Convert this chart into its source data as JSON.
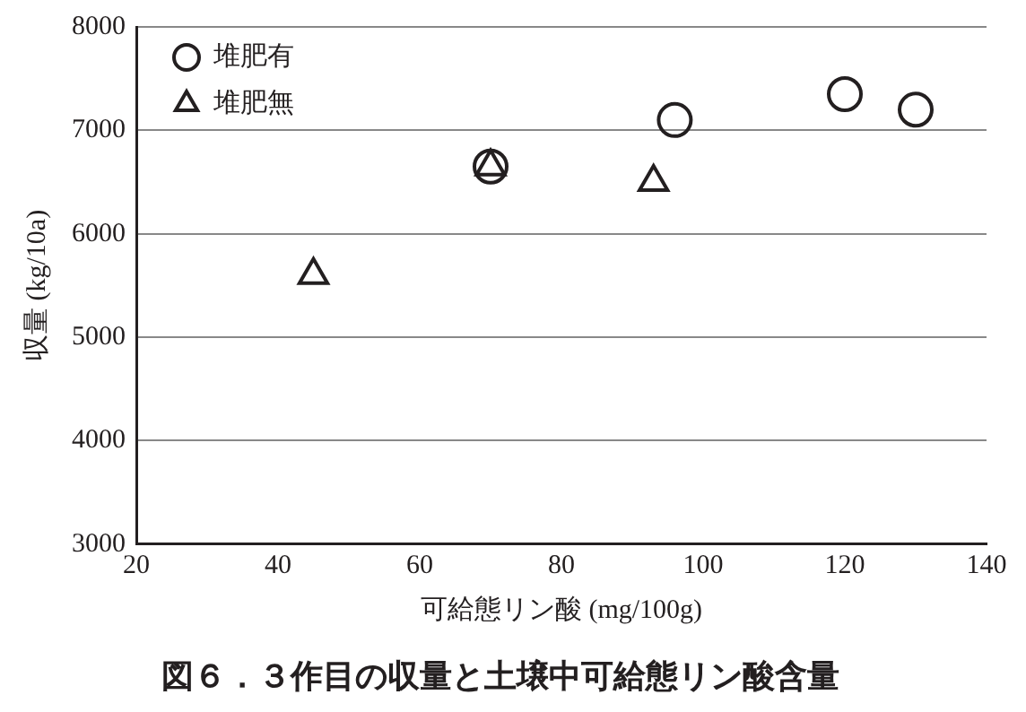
{
  "chart_data": {
    "type": "scatter",
    "title": "図６．３作目の収量と土壌中可給態リン酸含量",
    "xlabel": "可給態リン酸 (mg/100g)",
    "ylabel": "収量 (kg/10a)",
    "xlim": [
      20,
      140
    ],
    "xticks": [
      20,
      40,
      60,
      80,
      100,
      120,
      140
    ],
    "ylim": [
      3000,
      8000
    ],
    "yticks": [
      3000,
      4000,
      5000,
      6000,
      7000,
      8000
    ],
    "grid": "y",
    "legend": "top left",
    "series": [
      {
        "name": "堆肥有",
        "color": "#231f20",
        "marker": "circle",
        "x": [
          70,
          96,
          120,
          130
        ],
        "values": [
          6650,
          7100,
          7350,
          7200
        ]
      },
      {
        "name": "堆肥無",
        "color": "#231f20",
        "marker": "triangle",
        "x": [
          45,
          70,
          93
        ],
        "values": [
          5600,
          6650,
          6500
        ]
      }
    ]
  }
}
